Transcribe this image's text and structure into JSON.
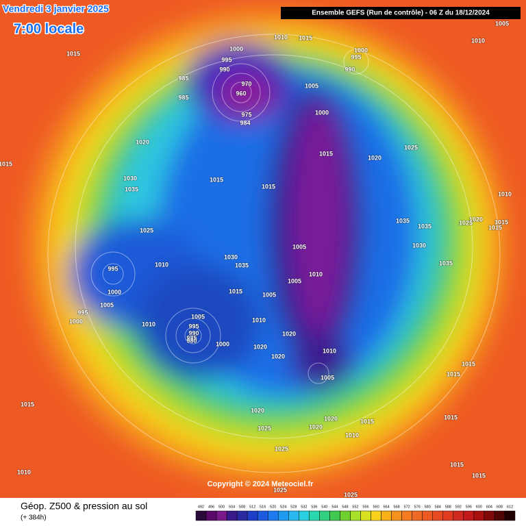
{
  "header": {
    "date": "Vendredi 3 janvier 2025",
    "time": "7:00 locale",
    "model": "Ensemble GEFS  (Run de contrôle)  -  06 Z du 18/12/2024"
  },
  "footer": {
    "title": "Géop. Z500 & pression au sol",
    "lead": "(+ 384h)",
    "copyright": "Copyright © 2024 Meteociel.fr"
  },
  "colorbar": {
    "labels": [
      "492",
      "496",
      "500",
      "504",
      "508",
      "512",
      "516",
      "520",
      "524",
      "528",
      "532",
      "536",
      "540",
      "544",
      "548",
      "552",
      "556",
      "560",
      "564",
      "568",
      "572",
      "576",
      "580",
      "584",
      "588",
      "592",
      "596",
      "600",
      "604",
      "608",
      "612"
    ]
  },
  "isobar_labels": [
    "1015",
    "1010",
    "1015",
    "1000",
    "995",
    "990",
    "985",
    "985",
    "970",
    "960",
    "975",
    "984",
    "1005",
    "1000",
    "995",
    "990",
    "1000",
    "1005",
    "1010",
    "1025",
    "1020",
    "1015",
    "1020",
    "1030",
    "1035",
    "1015",
    "1015",
    "1010",
    "1035",
    "1035",
    "1025",
    "1020",
    "1015",
    "1015",
    "1030",
    "1035",
    "1025",
    "1010",
    "995",
    "1000",
    "1005",
    "995",
    "1000",
    "1030",
    "1035",
    "1005",
    "1010",
    "1005",
    "1015",
    "1005",
    "1010",
    "1005",
    "995",
    "990",
    "985",
    "980",
    "1000",
    "1010",
    "1020",
    "1020",
    "1020",
    "1010",
    "1005",
    "1015",
    "1015",
    "1015",
    "1020",
    "1025",
    "1020",
    "1020",
    "1015",
    "1010",
    "1025",
    "1015",
    "1010",
    "1015",
    "1015",
    "1025",
    "1025",
    "1015"
  ]
}
